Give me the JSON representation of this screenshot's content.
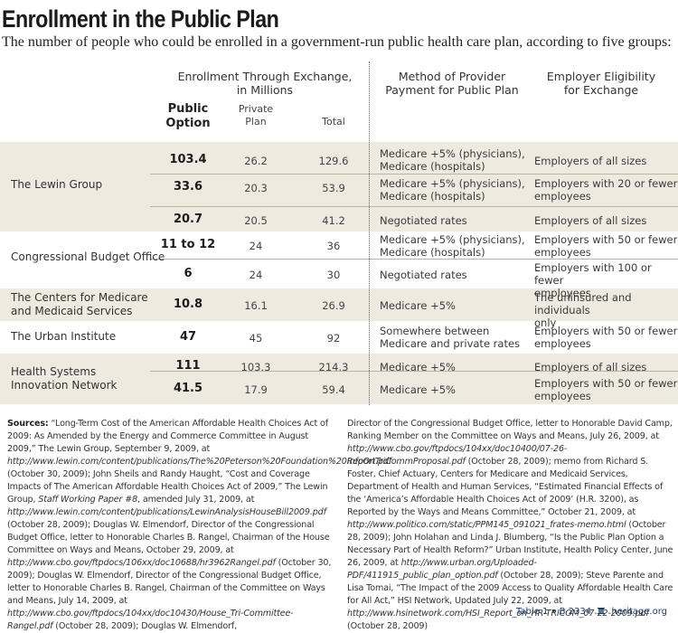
{
  "title": "Enrollment in the Public Plan",
  "subtitle": "The number of people who could be enrolled in a government-run public health care plan, according to five groups:",
  "headers": {
    "enrollment_group_line1": "Enrollment Through Exchange,",
    "enrollment_group_line2": "in Millions",
    "public_option_line1": "Public",
    "public_option_line2": "Option",
    "private_plan_line1": "Private",
    "private_plan_line2": "Plan",
    "total": "Total",
    "method_line1": "Method of Provider",
    "method_line2": "Payment for Public Plan",
    "eligibility_line1": "Employer Eligibility",
    "eligibility_line2": "for Exchange"
  },
  "groups": [
    {
      "name_line1": "The Lewin Group",
      "name_line2": ""
    },
    {
      "name_line1": "Congressional Budget Office",
      "name_line2": ""
    },
    {
      "name_line1": "The Centers for Medicare",
      "name_line2": "and Medicaid Services"
    },
    {
      "name_line1": "The Urban Institute",
      "name_line2": ""
    },
    {
      "name_line1": "Health Systems",
      "name_line2": "Innovation Network"
    }
  ],
  "rows": [
    {
      "public_option": "103.4",
      "private_plan": "26.2",
      "total": "129.6",
      "method_line1": "Medicare +5% (physicians),",
      "method_line2": "Medicare (hospitals)",
      "eligibility_line1": "Employers of all sizes",
      "eligibility_line2": ""
    },
    {
      "public_option": "33.6",
      "private_plan": "20.3",
      "total": "53.9",
      "method_line1": "Medicare +5% (physicians),",
      "method_line2": "Medicare (hospitals)",
      "eligibility_line1": "Employers with 20 or fewer",
      "eligibility_line2": "employees"
    },
    {
      "public_option": "20.7",
      "private_plan": "20.5",
      "total": "41.2",
      "method_line1": "Negotiated rates",
      "method_line2": "",
      "eligibility_line1": "Employers of all sizes",
      "eligibility_line2": ""
    },
    {
      "public_option": "11 to 12",
      "private_plan": "24",
      "total": "36",
      "method_line1": "Medicare +5% (physicians),",
      "method_line2": "Medicare (hospitals)",
      "eligibility_line1": "Employers with 50 or fewer",
      "eligibility_line2": "employees"
    },
    {
      "public_option": "6",
      "private_plan": "24",
      "total": "30",
      "method_line1": "Negotiated rates",
      "method_line2": "",
      "eligibility_line1": "Employers with 100 or fewer",
      "eligibility_line2": "employees"
    },
    {
      "public_option": "10.8",
      "private_plan": "16.1",
      "total": "26.9",
      "method_line1": "Medicare +5%",
      "method_line2": "",
      "eligibility_line1": "The uninsured and individuals",
      "eligibility_line2": "only"
    },
    {
      "public_option": "47",
      "private_plan": "45",
      "total": "92",
      "method_line1": "Somewhere between",
      "method_line2": "Medicare and private rates",
      "eligibility_line1": "Employers with 50 or fewer",
      "eligibility_line2": "employees"
    },
    {
      "public_option": "111",
      "private_plan": "103.3",
      "total": "214.3",
      "method_line1": "Medicare +5%",
      "method_line2": "",
      "eligibility_line1": "Employers of all sizes",
      "eligibility_line2": ""
    },
    {
      "public_option": "41.5",
      "private_plan": "17.9",
      "total": "59.4",
      "method_line1": "Medicare +5%",
      "method_line2": "",
      "eligibility_line1": "Employers with 50 or fewer",
      "eligibility_line2": "employees"
    }
  ],
  "sources": {
    "label": "Sources:",
    "left": [
      {
        "t": "“Long-Term Cost of the American Affordable Health Choices Act of 2009: As Amended by the Energy and Commerce Committee in August 2009,” The Lewin Group, September 9, 2009, at ",
        "i": false
      },
      {
        "t": "http://www.lewin.com/content/publications/The%20Peterson%20Foundation%20Report.pdf",
        "i": true
      },
      {
        "t": " (October 30, 2009); John Sheils and Randy Haught, “Cost and Coverage Impacts of The American Affordable Health Choices Act of 2009,” The Lewin Group, ",
        "i": false
      },
      {
        "t": "Staff Working Paper #8",
        "i": true
      },
      {
        "t": ", amended July 31, 2009, at ",
        "i": false
      },
      {
        "t": "http://www.lewin.com/content/publications/LewinAnalysisHouseBill2009.pdf",
        "i": true
      },
      {
        "t": " (October 28, 2009); Douglas W. Elmendorf, Director of the Congressional Budget Office, letter to Honorable Charles B. Rangel, Chairman of the House Committee on Ways and Means, October 29, 2009, at ",
        "i": false
      },
      {
        "t": "http://www.cbo.gov/ftpdocs/106xx/doc10688/hr3962Rangel.pdf",
        "i": true
      },
      {
        "t": " (October 30, 2009); Douglas W. Elmendorf, Director of the Congressional Budget Office, letter to Honorable Charles B. Rangel, Chairman of the Committee on Ways and Means, July 14, 2009, at ",
        "i": false
      },
      {
        "t": "http://www.cbo.gov/ftpdocs/104xx/doc10430/House_Tri-Committee-Rangel.pdf",
        "i": true
      },
      {
        "t": " (October 28, 2009); Douglas W. Elmendorf,",
        "i": false
      }
    ],
    "right": [
      {
        "t": "Director of the Congressional Budget Office, letter to Honorable David Camp, Ranking Member on the Committee on Ways and Means, July 26, 2009, at ",
        "i": false
      },
      {
        "t": "http://www.cbo.gov/ftpdocs/104xx/doc10400/07-26-InfoOnTriCommProposal.pdf",
        "i": true
      },
      {
        "t": " (October 28, 2009); memo from Richard S. Foster, Chief Actuary, Centers for Medicare and Medicaid Services, Department of Health and Human Services, “Estimated Financial Effects of the ‘America’s Affordable Health Choices Act of 2009’ (H.R. 3200), as Reported by the Ways and Means Committee,” October 21, 2009, at ",
        "i": false
      },
      {
        "t": "http://www.politico.com/static/PPM145_091021_frates-memo.html",
        "i": true
      },
      {
        "t": " (October 28, 2009); John Holahan and Linda J. Blumberg, “Is the Public Plan Option a Necessary Part of Health Reform?” Urban Institute, Health Policy Center, June 26, 2009, at ",
        "i": false
      },
      {
        "t": "http://www.urban.org/Uploaded-PDF/411915_public_plan_option.pdf",
        "i": true
      },
      {
        "t": " (October 28, 2009); Steve Parente and Lisa Tomai, “The Impact of the 2009 Access to Quality Affordable Health Care for All Act,” HSI Network, Updated July 22, 2009, at ",
        "i": false
      },
      {
        "t": "http://www.hsinetwork.com/HSI_Report_on_HR-TRICOM_07-22-2009.pdf",
        "i": true
      },
      {
        "t": " (October 28, 2009)",
        "i": false
      }
    ]
  },
  "footer": {
    "table_ref": "Table 1 • B 2334",
    "site": "heritage.org",
    "color": "#1e3a6b"
  },
  "colors": {
    "row_shade": "#eeeae0",
    "rule": "#b9b4a6"
  }
}
